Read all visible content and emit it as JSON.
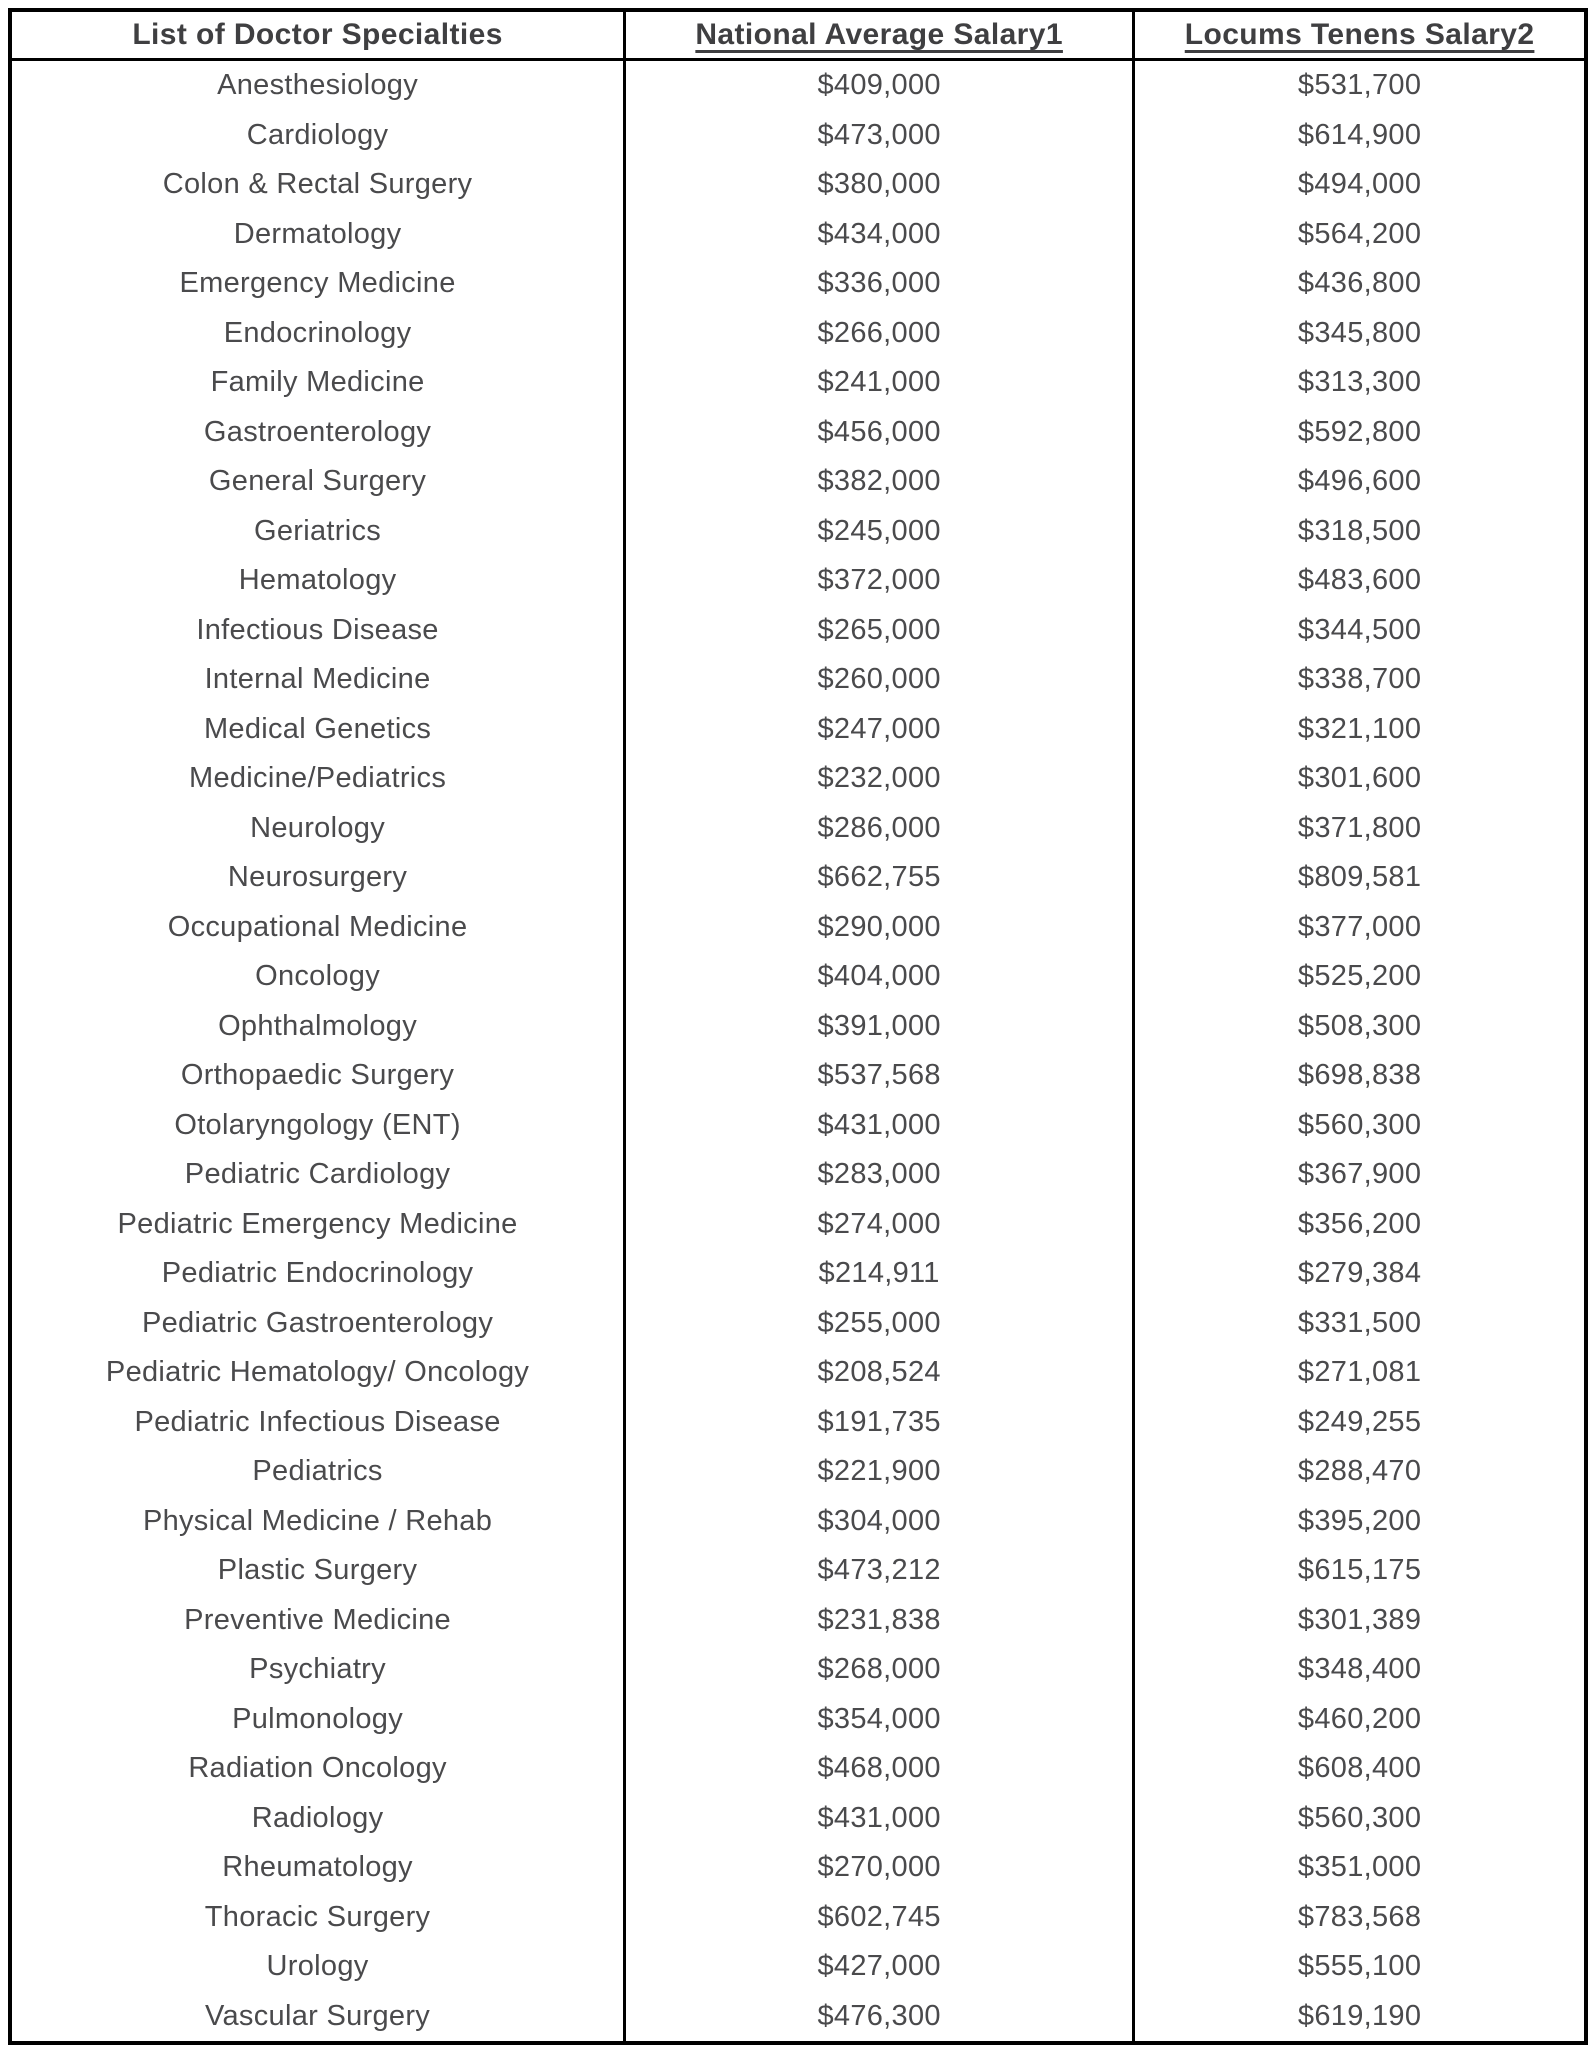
{
  "chart_data": {
    "type": "table",
    "title": "",
    "columns": [
      "List of Doctor Specialties",
      "National Average Salary1",
      "Locums Tenens Salary2"
    ],
    "rows": [
      [
        "Anesthesiology",
        "$409,000",
        "$531,700"
      ],
      [
        "Cardiology",
        "$473,000",
        "$614,900"
      ],
      [
        "Colon & Rectal Surgery",
        "$380,000",
        "$494,000"
      ],
      [
        "Dermatology",
        "$434,000",
        "$564,200"
      ],
      [
        "Emergency Medicine",
        "$336,000",
        "$436,800"
      ],
      [
        "Endocrinology",
        "$266,000",
        "$345,800"
      ],
      [
        "Family Medicine",
        "$241,000",
        "$313,300"
      ],
      [
        "Gastroenterology",
        "$456,000",
        "$592,800"
      ],
      [
        "General Surgery",
        "$382,000",
        "$496,600"
      ],
      [
        "Geriatrics",
        "$245,000",
        "$318,500"
      ],
      [
        "Hematology",
        "$372,000",
        "$483,600"
      ],
      [
        "Infectious Disease",
        "$265,000",
        "$344,500"
      ],
      [
        "Internal Medicine",
        "$260,000",
        "$338,700"
      ],
      [
        "Medical Genetics",
        "$247,000",
        "$321,100"
      ],
      [
        "Medicine/Pediatrics",
        "$232,000",
        "$301,600"
      ],
      [
        "Neurology",
        "$286,000",
        "$371,800"
      ],
      [
        "Neurosurgery",
        "$662,755",
        "$809,581"
      ],
      [
        "Occupational Medicine",
        "$290,000",
        "$377,000"
      ],
      [
        "Oncology",
        "$404,000",
        "$525,200"
      ],
      [
        "Ophthalmology",
        "$391,000",
        "$508,300"
      ],
      [
        "Orthopaedic Surgery",
        "$537,568",
        "$698,838"
      ],
      [
        "Otolaryngology (ENT)",
        "$431,000",
        "$560,300"
      ],
      [
        "Pediatric Cardiology",
        "$283,000",
        "$367,900"
      ],
      [
        "Pediatric Emergency Medicine",
        "$274,000",
        "$356,200"
      ],
      [
        "Pediatric Endocrinology",
        "$214,911",
        "$279,384"
      ],
      [
        "Pediatric Gastroenterology",
        "$255,000",
        "$331,500"
      ],
      [
        "Pediatric Hematology/ Oncology",
        "$208,524",
        "$271,081"
      ],
      [
        "Pediatric Infectious Disease",
        "$191,735",
        "$249,255"
      ],
      [
        "Pediatrics",
        "$221,900",
        "$288,470"
      ],
      [
        "Physical Medicine / Rehab",
        "$304,000",
        "$395,200"
      ],
      [
        "Plastic Surgery",
        "$473,212",
        "$615,175"
      ],
      [
        "Preventive Medicine",
        "$231,838",
        "$301,389"
      ],
      [
        "Psychiatry",
        "$268,000",
        "$348,400"
      ],
      [
        "Pulmonology",
        "$354,000",
        "$460,200"
      ],
      [
        "Radiation Oncology",
        "$468,000",
        "$608,400"
      ],
      [
        "Radiology",
        "$431,000",
        "$560,300"
      ],
      [
        "Rheumatology",
        "$270,000",
        "$351,000"
      ],
      [
        "Thoracic Surgery",
        "$602,745",
        "$783,568"
      ],
      [
        "Urology",
        "$427,000",
        "$555,100"
      ],
      [
        "Vascular Surgery",
        "$476,300",
        "$619,190"
      ]
    ],
    "layout": {
      "grid": "outer-border-and-column-separators-only",
      "header_underlined_columns": [
        1,
        2
      ]
    }
  },
  "styles": {
    "background": "#ffffff",
    "border_color": "#000000",
    "header_text_color": "#3f3f41",
    "body_text_color": "#4a4a4c"
  }
}
